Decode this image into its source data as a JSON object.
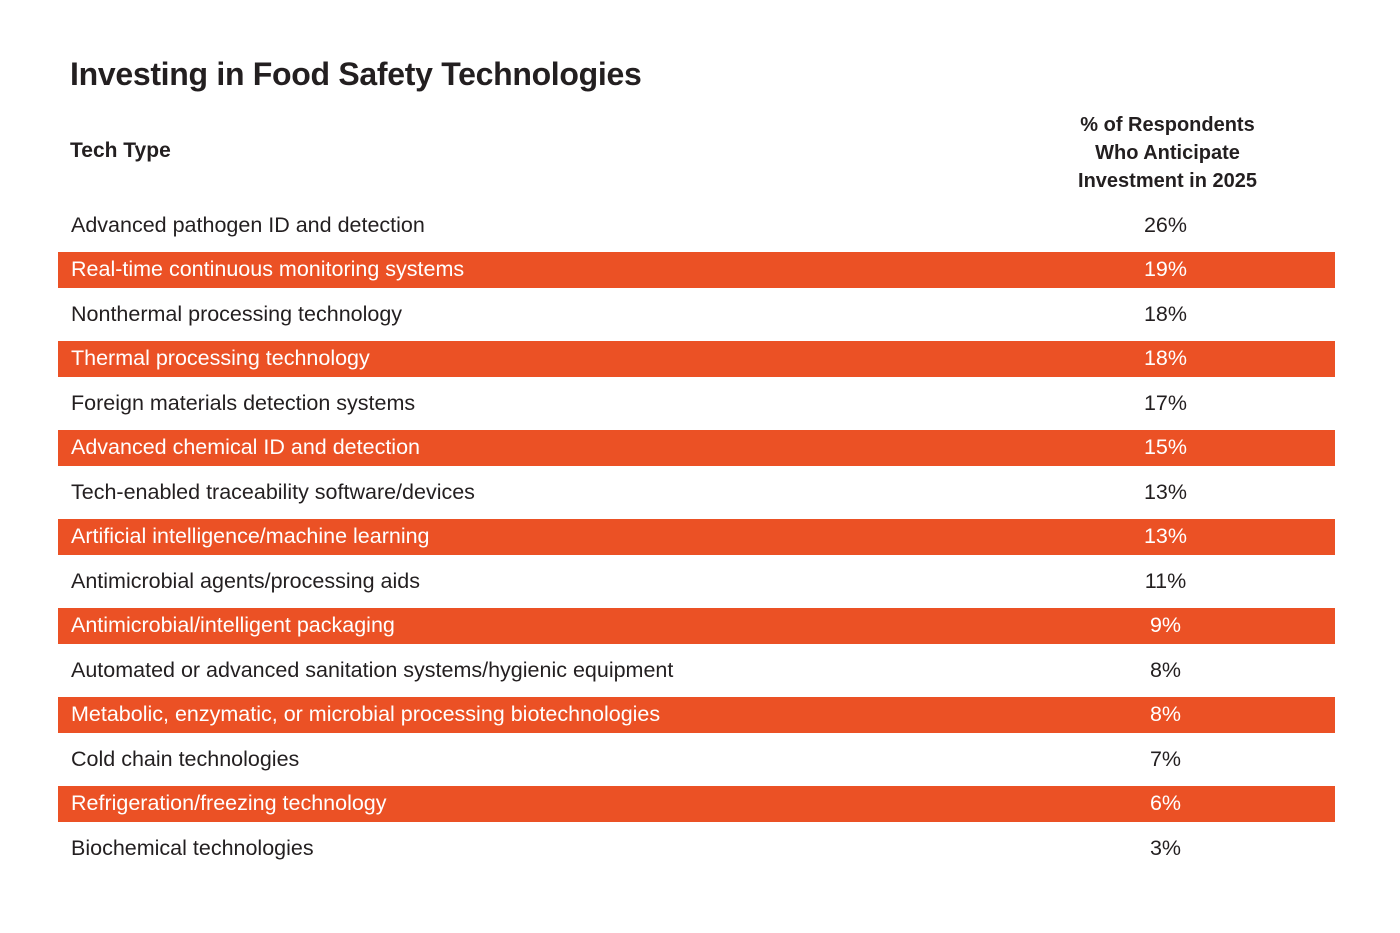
{
  "page": {
    "title": "Investing in Food Safety Technologies"
  },
  "table": {
    "tech_type_header": "Tech Type",
    "value_header_lines": [
      "% of Respondents",
      "Who Anticipate",
      "Investment in 2025"
    ],
    "rows": [
      {
        "label": "Advanced pathogen ID and detection",
        "value": "26%",
        "highlighted": false
      },
      {
        "label": "Real-time continuous monitoring systems",
        "value": "19%",
        "highlighted": true
      },
      {
        "label": "Nonthermal processing technology",
        "value": "18%",
        "highlighted": false
      },
      {
        "label": "Thermal processing technology",
        "value": "18%",
        "highlighted": true
      },
      {
        "label": "Foreign materials detection systems",
        "value": "17%",
        "highlighted": false
      },
      {
        "label": "Advanced chemical ID and detection",
        "value": "15%",
        "highlighted": true
      },
      {
        "label": "Tech-enabled traceability software/devices",
        "value": "13%",
        "highlighted": false
      },
      {
        "label": "Artificial intelligence/machine learning",
        "value": "13%",
        "highlighted": true
      },
      {
        "label": "Antimicrobial agents/processing aids",
        "value": "11%",
        "highlighted": false
      },
      {
        "label": "Antimicrobial/intelligent packaging",
        "value": "9%",
        "highlighted": true
      },
      {
        "label": "Automated or advanced sanitation systems/hygienic equipment",
        "value": "8%",
        "highlighted": false
      },
      {
        "label": "Metabolic, enzymatic, or microbial processing biotechnologies",
        "value": "8%",
        "highlighted": true
      },
      {
        "label": "Cold chain technologies",
        "value": "7%",
        "highlighted": false
      },
      {
        "label": "Refrigeration/freezing technology",
        "value": "6%",
        "highlighted": true
      },
      {
        "label": "Biochemical technologies",
        "value": "3%",
        "highlighted": false
      }
    ]
  },
  "colors": {
    "accent_orange": "#EB5125",
    "text_dark": "#231F20",
    "highlight_text": "#FFFFFF",
    "background": "#FFFFFF"
  },
  "chart_data": {
    "type": "table",
    "title": "Investing in Food Safety Technologies",
    "columns": [
      "Tech Type",
      "% of Respondents Who Anticipate Investment in 2025"
    ],
    "categories": [
      "Advanced pathogen ID and detection",
      "Real-time continuous monitoring systems",
      "Nonthermal processing technology",
      "Thermal processing technology",
      "Foreign materials detection systems",
      "Advanced chemical ID and detection",
      "Tech-enabled traceability software/devices",
      "Artificial intelligence/machine learning",
      "Antimicrobial agents/processing aids",
      "Antimicrobial/intelligent packaging",
      "Automated or advanced sanitation systems/hygienic equipment",
      "Metabolic, enzymatic, or microbial processing biotechnologies",
      "Cold chain technologies",
      "Refrigeration/freezing technology",
      "Biochemical technologies"
    ],
    "values": [
      26,
      19,
      18,
      18,
      17,
      15,
      13,
      13,
      11,
      9,
      8,
      8,
      7,
      6,
      3
    ],
    "unit": "%",
    "highlighted_row_indexes": [
      1,
      3,
      5,
      7,
      9,
      11,
      13
    ],
    "layout": "alternating rows highlighted in orange with white text; values column centered under three-line header"
  }
}
